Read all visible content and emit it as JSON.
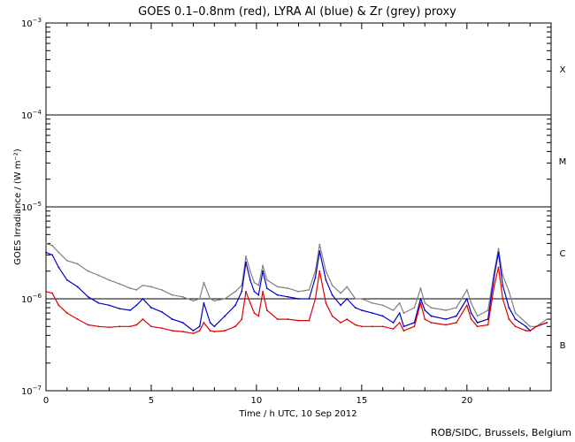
{
  "chart_data": {
    "type": "line",
    "title": "GOES 0.1–0.8nm (red), LYRA Al (blue) & Zr (grey) proxy",
    "xlabel": "Time / h UTC, 10 Sep 2012",
    "ylabel": "GOES Irradiance / (W m⁻²)",
    "credit": "ROB/SIDC, Brussels, Belgium",
    "xlim": [
      0,
      24
    ],
    "ylim": [
      1e-07,
      0.001
    ],
    "yscale": "log",
    "x_ticks": [
      0,
      5,
      10,
      15,
      20
    ],
    "x_tick_labels": [
      "0",
      "5",
      "10",
      "15",
      "20"
    ],
    "y_ticks": [
      {
        "base": "10",
        "exp": "−7",
        "value": 1e-07
      },
      {
        "base": "10",
        "exp": "−6",
        "value": 1e-06
      },
      {
        "base": "10",
        "exp": "−5",
        "value": 1e-05
      },
      {
        "base": "10",
        "exp": "−4",
        "value": 0.0001
      },
      {
        "base": "10",
        "exp": "−3",
        "value": 0.001
      }
    ],
    "flare_classes": [
      {
        "label": "B",
        "value": 3.16e-07
      },
      {
        "label": "C",
        "value": 3.16e-06
      },
      {
        "label": "M",
        "value": 3.16e-05
      },
      {
        "label": "X",
        "value": 0.000316
      }
    ],
    "threshold_lines": [
      1e-06,
      1e-05,
      0.0001
    ],
    "series": [
      {
        "color": "#808080",
        "x": [
          0,
          0.3,
          0.6,
          1,
          1.5,
          2,
          2.5,
          3,
          3.5,
          4,
          4.3,
          4.6,
          5,
          5.5,
          6,
          6.5,
          7,
          7.3,
          7.5,
          7.8,
          8,
          8.5,
          9,
          9.3,
          9.5,
          9.7,
          9.9,
          10.1,
          10.3,
          10.5,
          11,
          11.5,
          12,
          12.5,
          12.8,
          13,
          13.3,
          13.6,
          14,
          14.3,
          14.7,
          15,
          15.5,
          16,
          16.5,
          16.8,
          17,
          17.5,
          17.8,
          18,
          18.3,
          19,
          19.5,
          20,
          20.2,
          20.5,
          21,
          21.3,
          21.5,
          21.7,
          22,
          22.3,
          22.8,
          23,
          23.3,
          23.8
        ],
        "y": [
          4e-06,
          3.8e-06,
          3.2e-06,
          2.6e-06,
          2.4e-06,
          2e-06,
          1.8e-06,
          1.6e-06,
          1.45e-06,
          1.3e-06,
          1.25e-06,
          1.4e-06,
          1.35e-06,
          1.25e-06,
          1.1e-06,
          1.05e-06,
          9.5e-07,
          1e-06,
          1.5e-06,
          1e-06,
          9.5e-07,
          1e-06,
          1.2e-06,
          1.4e-06,
          2.9e-06,
          2e-06,
          1.5e-06,
          1.4e-06,
          2.3e-06,
          1.6e-06,
          1.35e-06,
          1.3e-06,
          1.2e-06,
          1.25e-06,
          2e-06,
          3.9e-06,
          2e-06,
          1.4e-06,
          1.15e-06,
          1.35e-06,
          1e-06,
          1e-06,
          9e-07,
          8.5e-07,
          7.5e-07,
          9e-07,
          7e-07,
          8e-07,
          1.3e-06,
          9e-07,
          8e-07,
          7.5e-07,
          8e-07,
          1.25e-06,
          9e-07,
          6.5e-07,
          7.5e-07,
          2e-06,
          3.5e-06,
          1.8e-06,
          1.2e-06,
          7e-07,
          5.5e-07,
          5e-07,
          5e-07,
          6e-07
        ]
      },
      {
        "color": "#0000cc",
        "x": [
          0,
          0.3,
          0.6,
          1,
          1.5,
          2,
          2.5,
          3,
          3.5,
          4,
          4.3,
          4.6,
          5,
          5.5,
          6,
          6.5,
          7,
          7.3,
          7.5,
          7.8,
          8,
          8.5,
          9,
          9.3,
          9.5,
          9.7,
          9.9,
          10.1,
          10.3,
          10.5,
          11,
          11.5,
          12,
          12.5,
          12.8,
          13,
          13.3,
          13.6,
          14,
          14.3,
          14.7,
          15,
          15.5,
          16,
          16.5,
          16.8,
          17,
          17.5,
          17.8,
          18,
          18.3,
          19,
          19.5,
          20,
          20.2,
          20.5,
          21,
          21.3,
          21.5,
          21.7,
          22,
          22.3,
          22.8,
          23,
          23.3,
          23.8
        ],
        "y": [
          3.2e-06,
          3e-06,
          2.2e-06,
          1.6e-06,
          1.35e-06,
          1.05e-06,
          9e-07,
          8.5e-07,
          7.8e-07,
          7.5e-07,
          8.5e-07,
          1e-06,
          8e-07,
          7.2e-07,
          6e-07,
          5.5e-07,
          4.5e-07,
          5e-07,
          9e-07,
          5.5e-07,
          5e-07,
          6.5e-07,
          8.5e-07,
          1.2e-06,
          2.5e-06,
          1.6e-06,
          1.2e-06,
          1.1e-06,
          2e-06,
          1.3e-06,
          1.1e-06,
          1.05e-06,
          1e-06,
          1e-06,
          1.7e-06,
          3.3e-06,
          1.6e-06,
          1.1e-06,
          8.5e-07,
          1e-06,
          8e-07,
          7.5e-07,
          7e-07,
          6.5e-07,
          5.5e-07,
          7e-07,
          5e-07,
          5.5e-07,
          1e-06,
          7.5e-07,
          6.5e-07,
          6e-07,
          6.5e-07,
          1e-06,
          7e-07,
          5.5e-07,
          6e-07,
          1.8e-06,
          3.2e-06,
          1.4e-06,
          8e-07,
          6e-07,
          5e-07,
          4.5e-07,
          5e-07,
          5.5e-07
        ]
      },
      {
        "color": "#e00000",
        "x": [
          0,
          0.3,
          0.6,
          1,
          1.5,
          2,
          2.5,
          3,
          3.5,
          4,
          4.3,
          4.6,
          5,
          5.5,
          6,
          6.5,
          7,
          7.3,
          7.5,
          7.8,
          8,
          8.5,
          9,
          9.3,
          9.5,
          9.7,
          9.9,
          10.1,
          10.3,
          10.5,
          11,
          11.5,
          12,
          12.5,
          12.8,
          13,
          13.3,
          13.6,
          14,
          14.3,
          14.7,
          15,
          15.5,
          16,
          16.5,
          16.8,
          17,
          17.5,
          17.8,
          18,
          18.3,
          19,
          19.5,
          20,
          20.2,
          20.5,
          21,
          21.3,
          21.5,
          21.7,
          22,
          22.3,
          22.8,
          23,
          23.3,
          23.8
        ],
        "y": [
          1.2e-06,
          1.15e-06,
          8.5e-07,
          7e-07,
          6e-07,
          5.2e-07,
          5e-07,
          4.9e-07,
          5e-07,
          5e-07,
          5.2e-07,
          6e-07,
          5e-07,
          4.8e-07,
          4.5e-07,
          4.4e-07,
          4.2e-07,
          4.5e-07,
          5.5e-07,
          4.5e-07,
          4.4e-07,
          4.5e-07,
          5e-07,
          6e-07,
          1.2e-06,
          9e-07,
          7e-07,
          6.5e-07,
          1.2e-06,
          7.5e-07,
          6e-07,
          6e-07,
          5.8e-07,
          5.8e-07,
          1e-06,
          2e-06,
          9e-07,
          6.5e-07,
          5.5e-07,
          6e-07,
          5.2e-07,
          5e-07,
          5e-07,
          5e-07,
          4.7e-07,
          5.5e-07,
          4.5e-07,
          5e-07,
          9e-07,
          6e-07,
          5.5e-07,
          5.2e-07,
          5.5e-07,
          8.5e-07,
          6e-07,
          5e-07,
          5.2e-07,
          1.4e-06,
          2.2e-06,
          1e-06,
          6e-07,
          5e-07,
          4.5e-07,
          4.5e-07,
          5e-07,
          5.5e-07
        ]
      }
    ]
  }
}
